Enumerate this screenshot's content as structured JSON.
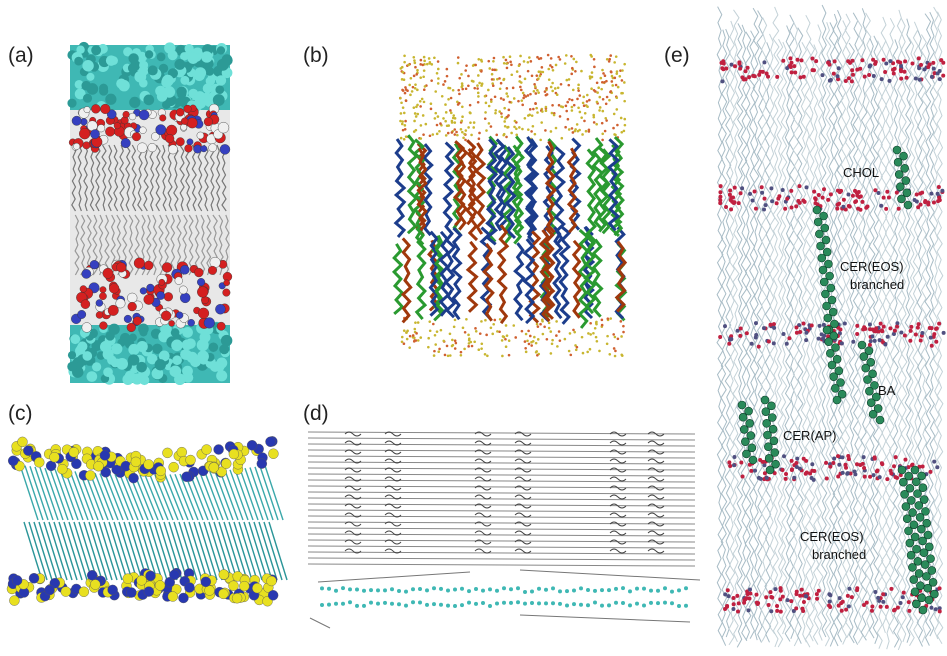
{
  "panels": [
    {
      "label": "(a)"
    },
    {
      "label": "(b)"
    },
    {
      "label": "(c)"
    },
    {
      "label": "(d)"
    },
    {
      "label": "(e)",
      "annotations": [
        [
          "CHOL"
        ],
        [
          "CER(EOS)",
          "branched"
        ],
        [
          "BA"
        ],
        [
          "CER(AP)"
        ],
        [
          "CER(EOS)",
          "branched"
        ]
      ]
    }
  ]
}
